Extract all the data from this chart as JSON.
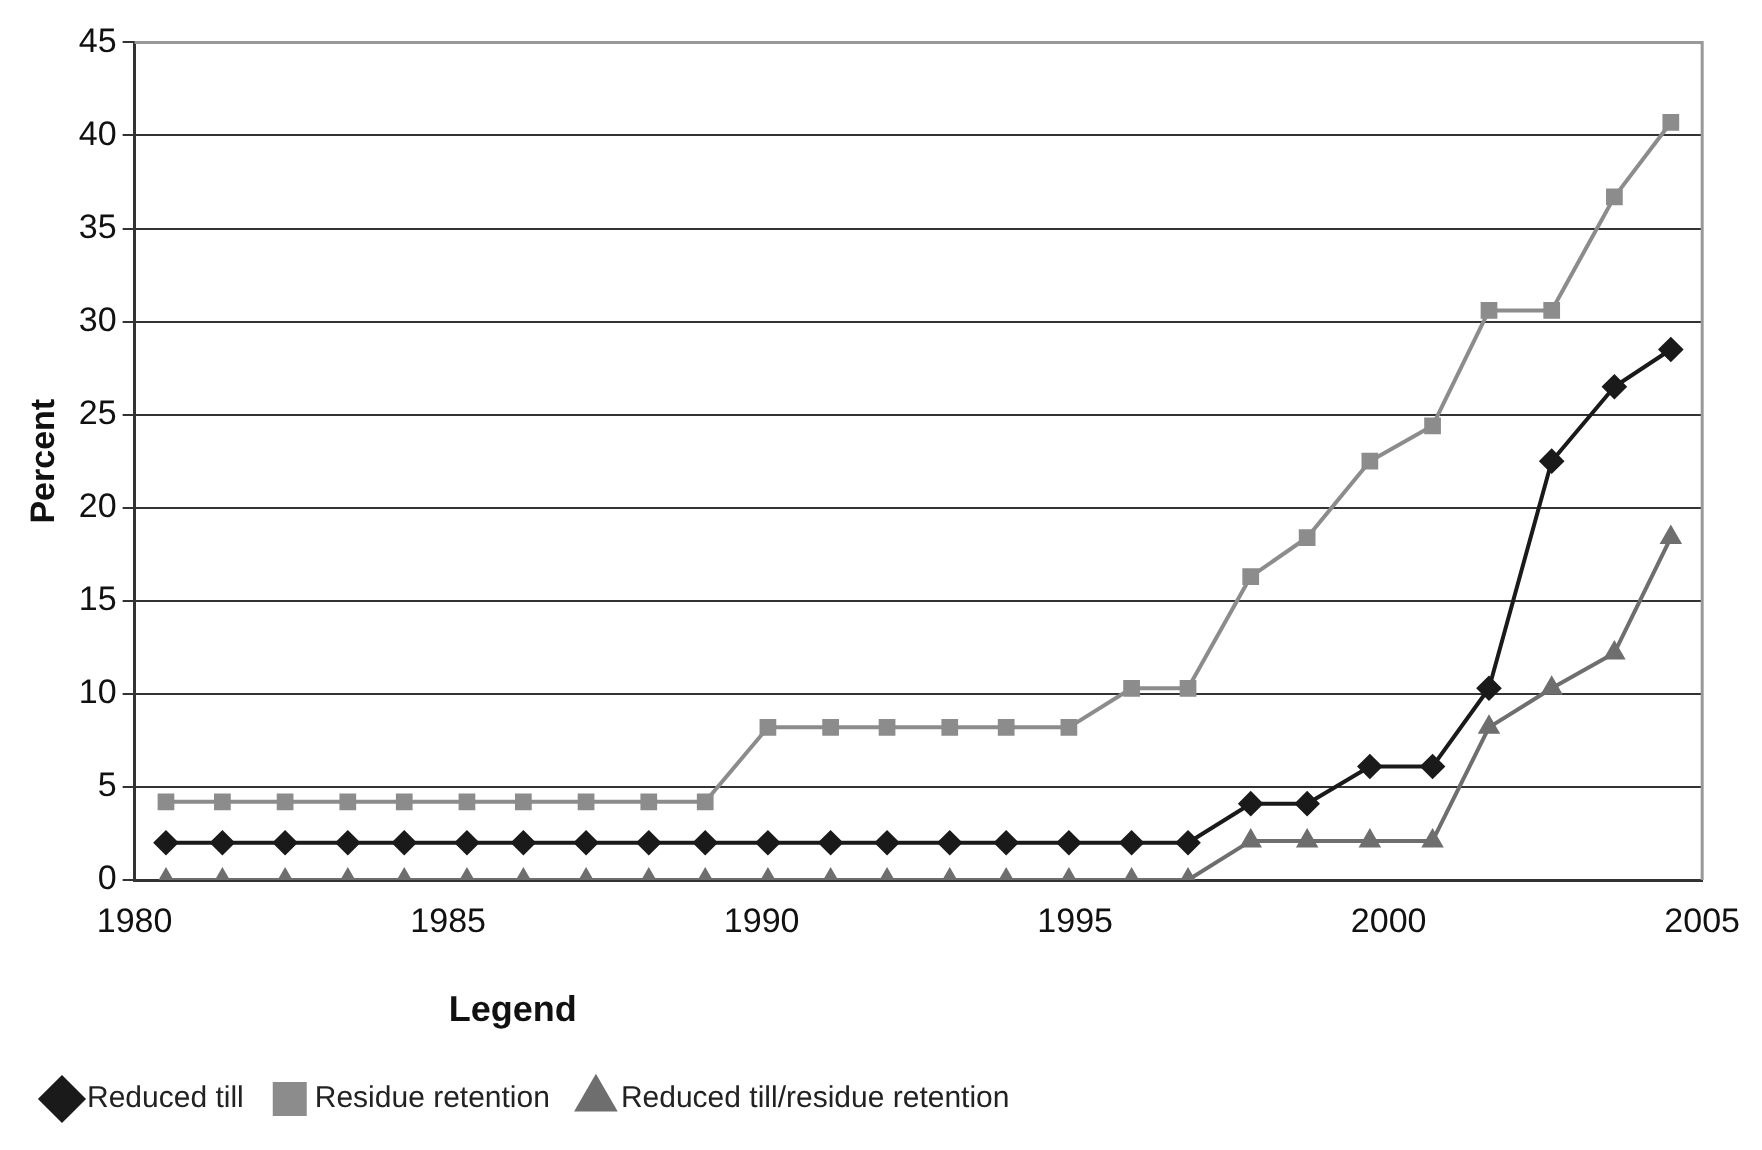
{
  "chart_data": {
    "type": "line",
    "ylabel": "Percent",
    "legend_title": "Legend",
    "x": [
      1980.5,
      1981.4,
      1982.4,
      1983.4,
      1984.3,
      1985.3,
      1986.2,
      1987.2,
      1988.2,
      1989.1,
      1990.1,
      1991.1,
      1992.0,
      1993.0,
      1993.9,
      1994.9,
      1995.9,
      1996.8,
      1997.8,
      1998.7,
      1999.7,
      2000.7,
      2001.6,
      2002.6,
      2003.6,
      2004.5
    ],
    "series": [
      {
        "name": "Reduced till",
        "color": "#1a1a1a",
        "marker": "diamond",
        "values": [
          2,
          2,
          2,
          2,
          2,
          2,
          2,
          2,
          2,
          2,
          2,
          2,
          2,
          2,
          2,
          2,
          2,
          2,
          4.1,
          4.1,
          6.1,
          6.1,
          10.3,
          22.5,
          26.5,
          28.5
        ]
      },
      {
        "name": "Residue retention",
        "color": "#8c8c8c",
        "marker": "square",
        "values": [
          4.2,
          4.2,
          4.2,
          4.2,
          4.2,
          4.2,
          4.2,
          4.2,
          4.2,
          4.2,
          8.2,
          8.2,
          8.2,
          8.2,
          8.2,
          8.2,
          10.3,
          10.3,
          16.3,
          18.4,
          22.5,
          24.4,
          30.6,
          30.6,
          36.7,
          40.7
        ]
      },
      {
        "name": "Reduced till/residue retention",
        "color": "#6e6e6e",
        "marker": "triangle",
        "values": [
          0,
          0,
          0,
          0,
          0,
          0,
          0,
          0,
          0,
          0,
          0,
          0,
          0,
          0,
          0,
          0,
          0,
          0,
          2.1,
          2.1,
          2.1,
          2.1,
          8.2,
          10.3,
          12.2,
          18.4
        ]
      }
    ],
    "xlim": [
      1980,
      2005
    ],
    "xticks": [
      1980,
      1985,
      1990,
      1995,
      2000,
      2005
    ],
    "ylim": [
      0,
      45
    ],
    "yticks": [
      0,
      5,
      10,
      15,
      20,
      25,
      30,
      35,
      40,
      45
    ],
    "grid": "y",
    "legend": "bottom"
  }
}
